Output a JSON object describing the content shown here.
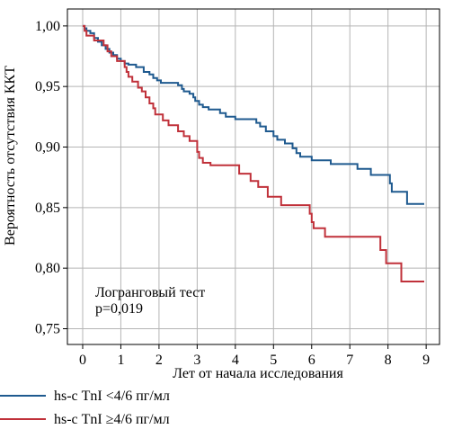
{
  "chart_data": {
    "type": "line",
    "title": "",
    "xlabel": "Лет от начала исследования",
    "ylabel": "Вероятность отсутствия ККТ",
    "xlim": [
      -0.4,
      9.35
    ],
    "ylim": [
      0.737,
      1.014
    ],
    "x_ticks": [
      0,
      1,
      2,
      3,
      4,
      5,
      6,
      7,
      8,
      9
    ],
    "x_tick_labels": [
      "0",
      "1",
      "2",
      "3",
      "4",
      "5",
      "6",
      "7",
      "8",
      "9"
    ],
    "y_ticks": [
      0.75,
      0.8,
      0.85,
      0.9,
      0.95,
      1.0
    ],
    "y_tick_labels": [
      "0,75",
      "0,80",
      "0,85",
      "0,90",
      "0,95",
      "1,00"
    ],
    "grid": true,
    "legend_position": "below-left",
    "annotation": {
      "line1": "Логранговый тест",
      "line2": "p=0,019"
    },
    "series": [
      {
        "name": "hs-с TnI <4/6 пг/мл",
        "color": "#1f5a8f",
        "step": true,
        "points": [
          [
            0,
            1.0
          ],
          [
            0.05,
            0.998
          ],
          [
            0.1,
            0.996
          ],
          [
            0.2,
            0.994
          ],
          [
            0.3,
            0.99
          ],
          [
            0.4,
            0.987
          ],
          [
            0.5,
            0.984
          ],
          [
            0.6,
            0.981
          ],
          [
            0.7,
            0.978
          ],
          [
            0.8,
            0.976
          ],
          [
            0.9,
            0.973
          ],
          [
            1.0,
            0.971
          ],
          [
            1.1,
            0.969
          ],
          [
            1.2,
            0.968
          ],
          [
            1.4,
            0.966
          ],
          [
            1.6,
            0.962
          ],
          [
            1.75,
            0.96
          ],
          [
            1.85,
            0.957
          ],
          [
            1.95,
            0.955
          ],
          [
            2.05,
            0.953
          ],
          [
            2.5,
            0.951
          ],
          [
            2.6,
            0.948
          ],
          [
            2.65,
            0.946
          ],
          [
            2.8,
            0.944
          ],
          [
            2.9,
            0.941
          ],
          [
            2.95,
            0.938
          ],
          [
            3.05,
            0.935
          ],
          [
            3.15,
            0.933
          ],
          [
            3.3,
            0.931
          ],
          [
            3.6,
            0.928
          ],
          [
            3.75,
            0.925
          ],
          [
            4.0,
            0.923
          ],
          [
            4.55,
            0.92
          ],
          [
            4.65,
            0.917
          ],
          [
            4.8,
            0.913
          ],
          [
            5.0,
            0.909
          ],
          [
            5.1,
            0.906
          ],
          [
            5.3,
            0.903
          ],
          [
            5.5,
            0.899
          ],
          [
            5.6,
            0.895
          ],
          [
            5.7,
            0.892
          ],
          [
            6.0,
            0.889
          ],
          [
            6.5,
            0.886
          ],
          [
            7.2,
            0.882
          ],
          [
            7.55,
            0.877
          ],
          [
            8.05,
            0.87
          ],
          [
            8.1,
            0.863
          ],
          [
            8.5,
            0.853
          ],
          [
            8.95,
            0.853
          ]
        ]
      },
      {
        "name": "hs-с TnI ≥4/6 пг/мл",
        "color": "#c0313a",
        "step": true,
        "points": [
          [
            0,
            1.0
          ],
          [
            0.05,
            0.996
          ],
          [
            0.1,
            0.992
          ],
          [
            0.3,
            0.988
          ],
          [
            0.55,
            0.984
          ],
          [
            0.65,
            0.979
          ],
          [
            0.75,
            0.975
          ],
          [
            0.9,
            0.971
          ],
          [
            1.1,
            0.966
          ],
          [
            1.15,
            0.962
          ],
          [
            1.2,
            0.958
          ],
          [
            1.3,
            0.954
          ],
          [
            1.45,
            0.949
          ],
          [
            1.55,
            0.946
          ],
          [
            1.65,
            0.941
          ],
          [
            1.75,
            0.936
          ],
          [
            1.85,
            0.932
          ],
          [
            1.9,
            0.927
          ],
          [
            2.1,
            0.922
          ],
          [
            2.25,
            0.918
          ],
          [
            2.5,
            0.913
          ],
          [
            2.65,
            0.909
          ],
          [
            2.8,
            0.905
          ],
          [
            3.0,
            0.896
          ],
          [
            3.05,
            0.891
          ],
          [
            3.15,
            0.887
          ],
          [
            3.35,
            0.885
          ],
          [
            4.1,
            0.878
          ],
          [
            4.4,
            0.872
          ],
          [
            4.6,
            0.867
          ],
          [
            4.85,
            0.859
          ],
          [
            5.2,
            0.852
          ],
          [
            5.95,
            0.845
          ],
          [
            6.0,
            0.838
          ],
          [
            6.05,
            0.833
          ],
          [
            6.35,
            0.826
          ],
          [
            7.8,
            0.815
          ],
          [
            7.95,
            0.804
          ],
          [
            8.35,
            0.789
          ],
          [
            8.95,
            0.789
          ]
        ]
      }
    ]
  }
}
